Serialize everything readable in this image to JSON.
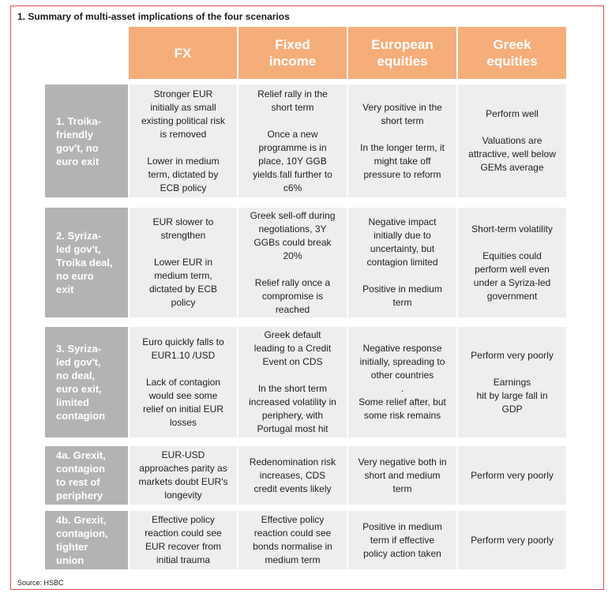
{
  "title": "1. Summary of multi-asset implications of the four scenarios",
  "source": "Source: HSBC",
  "headers": [
    "FX",
    "Fixed\nincome",
    "European\nequities",
    "Greek\nequities"
  ],
  "rows": [
    {
      "label": "1. Troika-\nfriendly\ngov't, no\neuro exit",
      "cells": [
        "Stronger EUR\ninitially as small\nexisting political risk\nis removed\n\nLower in medium\nterm, dictated by\nECB policy",
        "Relief rally in the\nshort term\n\nOnce a new\nprogramme is in\nplace, 10Y GGB\nyields fall further to\nc6%",
        "Very positive in the\nshort term\n\nIn the longer term, it\nmight take off\npressure to reform",
        "Perform well\n\nValuations are\nattractive, well below\nGEMs average"
      ]
    },
    {
      "label": "2. Syriza-\nled gov't,\nTroika deal,\nno euro\nexit",
      "cells": [
        "EUR slower to\nstrengthen\n\nLower EUR in\nmedium term,\ndictated by ECB\npolicy",
        "Greek sell-off during\nnegotiations, 3Y\nGGBs could break\n20%\n\nRelief rally once a\ncompromise is\nreached",
        "Negative impact\ninitially due to\nuncertainty, but\ncontagion limited\n\nPositive in medium\nterm",
        "Short-term volatility\n\nEquities could\nperform well even\nunder a Syriza-led\ngovernment"
      ]
    },
    {
      "label": "3. Syriza-\nled gov't,\nno deal,\neuro exit,\nlimited\ncontagion",
      "cells": [
        "Euro quickly falls to\nEUR1.10 /USD\n\nLack of contagion\nwould see some\nrelief on initial EUR\nlosses",
        "Greek default\nleading to a Credit\nEvent on CDS\n\nIn the short term\nincreased volatility in\nperiphery, with\nPortugal most hit",
        "Negative response\ninitially, spreading to\nother countries\n.\nSome relief after, but\nsome risk remains",
        "Perform very poorly\n\nEarnings\nhit by large fall in\nGDP"
      ]
    },
    {
      "label": "4a. Grexit,\ncontagion\nto rest of\nperiphery",
      "cells": [
        "EUR-USD\napproaches parity as\nmarkets doubt EUR's\nlongevity",
        "Redenomination risk\nincreases, CDS\ncredit events likely",
        "Very negative both in\nshort and medium\nterm",
        "Perform very poorly"
      ]
    },
    {
      "label": "4b. Grexit,\ncontagion,\ntighter\nunion",
      "cells": [
        "Effective policy\nreaction could see\nEUR recover from\ninitial trauma",
        "Effective policy\nreaction could see\nbonds normalise in\nmedium term",
        "Positive in medium\nterm if effective\npolicy action taken",
        "Perform very poorly"
      ]
    }
  ]
}
